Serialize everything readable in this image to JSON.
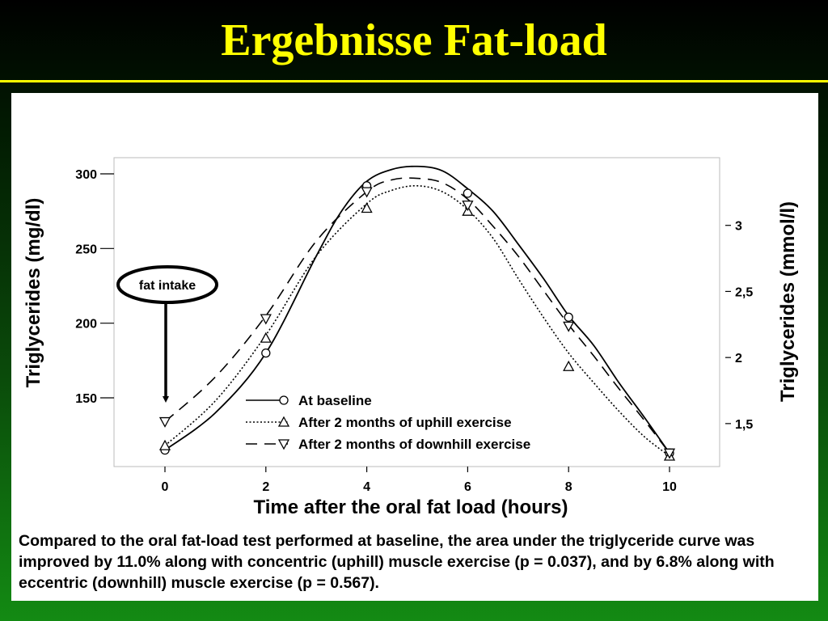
{
  "slide": {
    "title": "Ergebnisse Fat-load"
  },
  "annotation": {
    "label": "fat intake"
  },
  "caption": "Compared to the oral fat-load test performed at baseline, the area under the triglyceride curve was improved by 11.0% along with concentric (uphill) muscle exercise (p = 0.037), and by 6.8% along with eccentric (downhill) muscle exercise (p = 0.567).",
  "colors": {
    "slide_title": "#ffff00",
    "chart_ink": "#000000",
    "panel_bg": "#ffffff"
  },
  "chart_data": {
    "type": "line",
    "xlabel": "Time after the oral fat load (hours)",
    "ylabel_left": "Triglycerides (mg/dl)",
    "ylabel_right": "Triglycerides (mmol/l)",
    "xlim": [
      -1,
      10.5
    ],
    "ylim": [
      105,
      310
    ],
    "xticks": [
      0,
      2,
      4,
      6,
      8,
      10
    ],
    "xtick_labels": [
      "0",
      "2",
      "4",
      "6",
      "8",
      "10"
    ],
    "yticks_left": [
      150,
      200,
      250,
      300
    ],
    "ytick_labels_left": [
      "150",
      "200",
      "250",
      "300"
    ],
    "yticks_right_mmol": [
      1.5,
      2,
      2.5,
      3
    ],
    "ytick_labels_right": [
      "1,5",
      "2",
      "2,5",
      "3"
    ],
    "mgdl_per_mmol": 88.5,
    "legend_position": "bottom-center",
    "grid": false,
    "series": [
      {
        "name": "At baseline",
        "line_style": "solid",
        "marker": "circle",
        "points": [
          [
            0,
            115
          ],
          [
            2,
            180
          ],
          [
            4,
            292
          ],
          [
            6,
            287
          ],
          [
            8,
            204
          ],
          [
            10,
            113
          ]
        ],
        "curve": [
          [
            0,
            115
          ],
          [
            1,
            140
          ],
          [
            2,
            180
          ],
          [
            3,
            245
          ],
          [
            3.5,
            275
          ],
          [
            4,
            295
          ],
          [
            4.5,
            303
          ],
          [
            5,
            305
          ],
          [
            5.5,
            302
          ],
          [
            6,
            290
          ],
          [
            6.5,
            275
          ],
          [
            7,
            253
          ],
          [
            7.5,
            230
          ],
          [
            8,
            205
          ],
          [
            8.5,
            185
          ],
          [
            9,
            160
          ],
          [
            9.5,
            137
          ],
          [
            10,
            113
          ]
        ]
      },
      {
        "name": "After 2 months of uphill exercise",
        "line_style": "dotted",
        "marker": "triangle-up",
        "points": [
          [
            0,
            118
          ],
          [
            2,
            190
          ],
          [
            4,
            277
          ],
          [
            6,
            275
          ],
          [
            8,
            171
          ],
          [
            10,
            111
          ]
        ],
        "curve": [
          [
            0,
            118
          ],
          [
            1,
            148
          ],
          [
            2,
            192
          ],
          [
            3,
            245
          ],
          [
            4,
            280
          ],
          [
            4.5,
            289
          ],
          [
            5,
            292
          ],
          [
            5.5,
            288
          ],
          [
            6,
            276
          ],
          [
            6.5,
            257
          ],
          [
            7,
            230
          ],
          [
            7.5,
            204
          ],
          [
            8,
            180
          ],
          [
            8.5,
            160
          ],
          [
            9,
            141
          ],
          [
            9.5,
            124
          ],
          [
            10,
            111
          ]
        ]
      },
      {
        "name": "After 2 months of downhill exercise",
        "line_style": "dashed",
        "marker": "triangle-down",
        "points": [
          [
            0,
            134
          ],
          [
            2,
            203
          ],
          [
            4,
            288
          ],
          [
            6,
            279
          ],
          [
            8,
            198
          ],
          [
            10,
            113
          ]
        ],
        "curve": [
          [
            0,
            134
          ],
          [
            1,
            164
          ],
          [
            2,
            205
          ],
          [
            3,
            255
          ],
          [
            4,
            288
          ],
          [
            4.5,
            296
          ],
          [
            5,
            297
          ],
          [
            5.5,
            294
          ],
          [
            6,
            283
          ],
          [
            6.5,
            265
          ],
          [
            7,
            245
          ],
          [
            7.5,
            222
          ],
          [
            8,
            199
          ],
          [
            8.5,
            178
          ],
          [
            9,
            156
          ],
          [
            9.5,
            135
          ],
          [
            10,
            113
          ]
        ]
      }
    ]
  }
}
